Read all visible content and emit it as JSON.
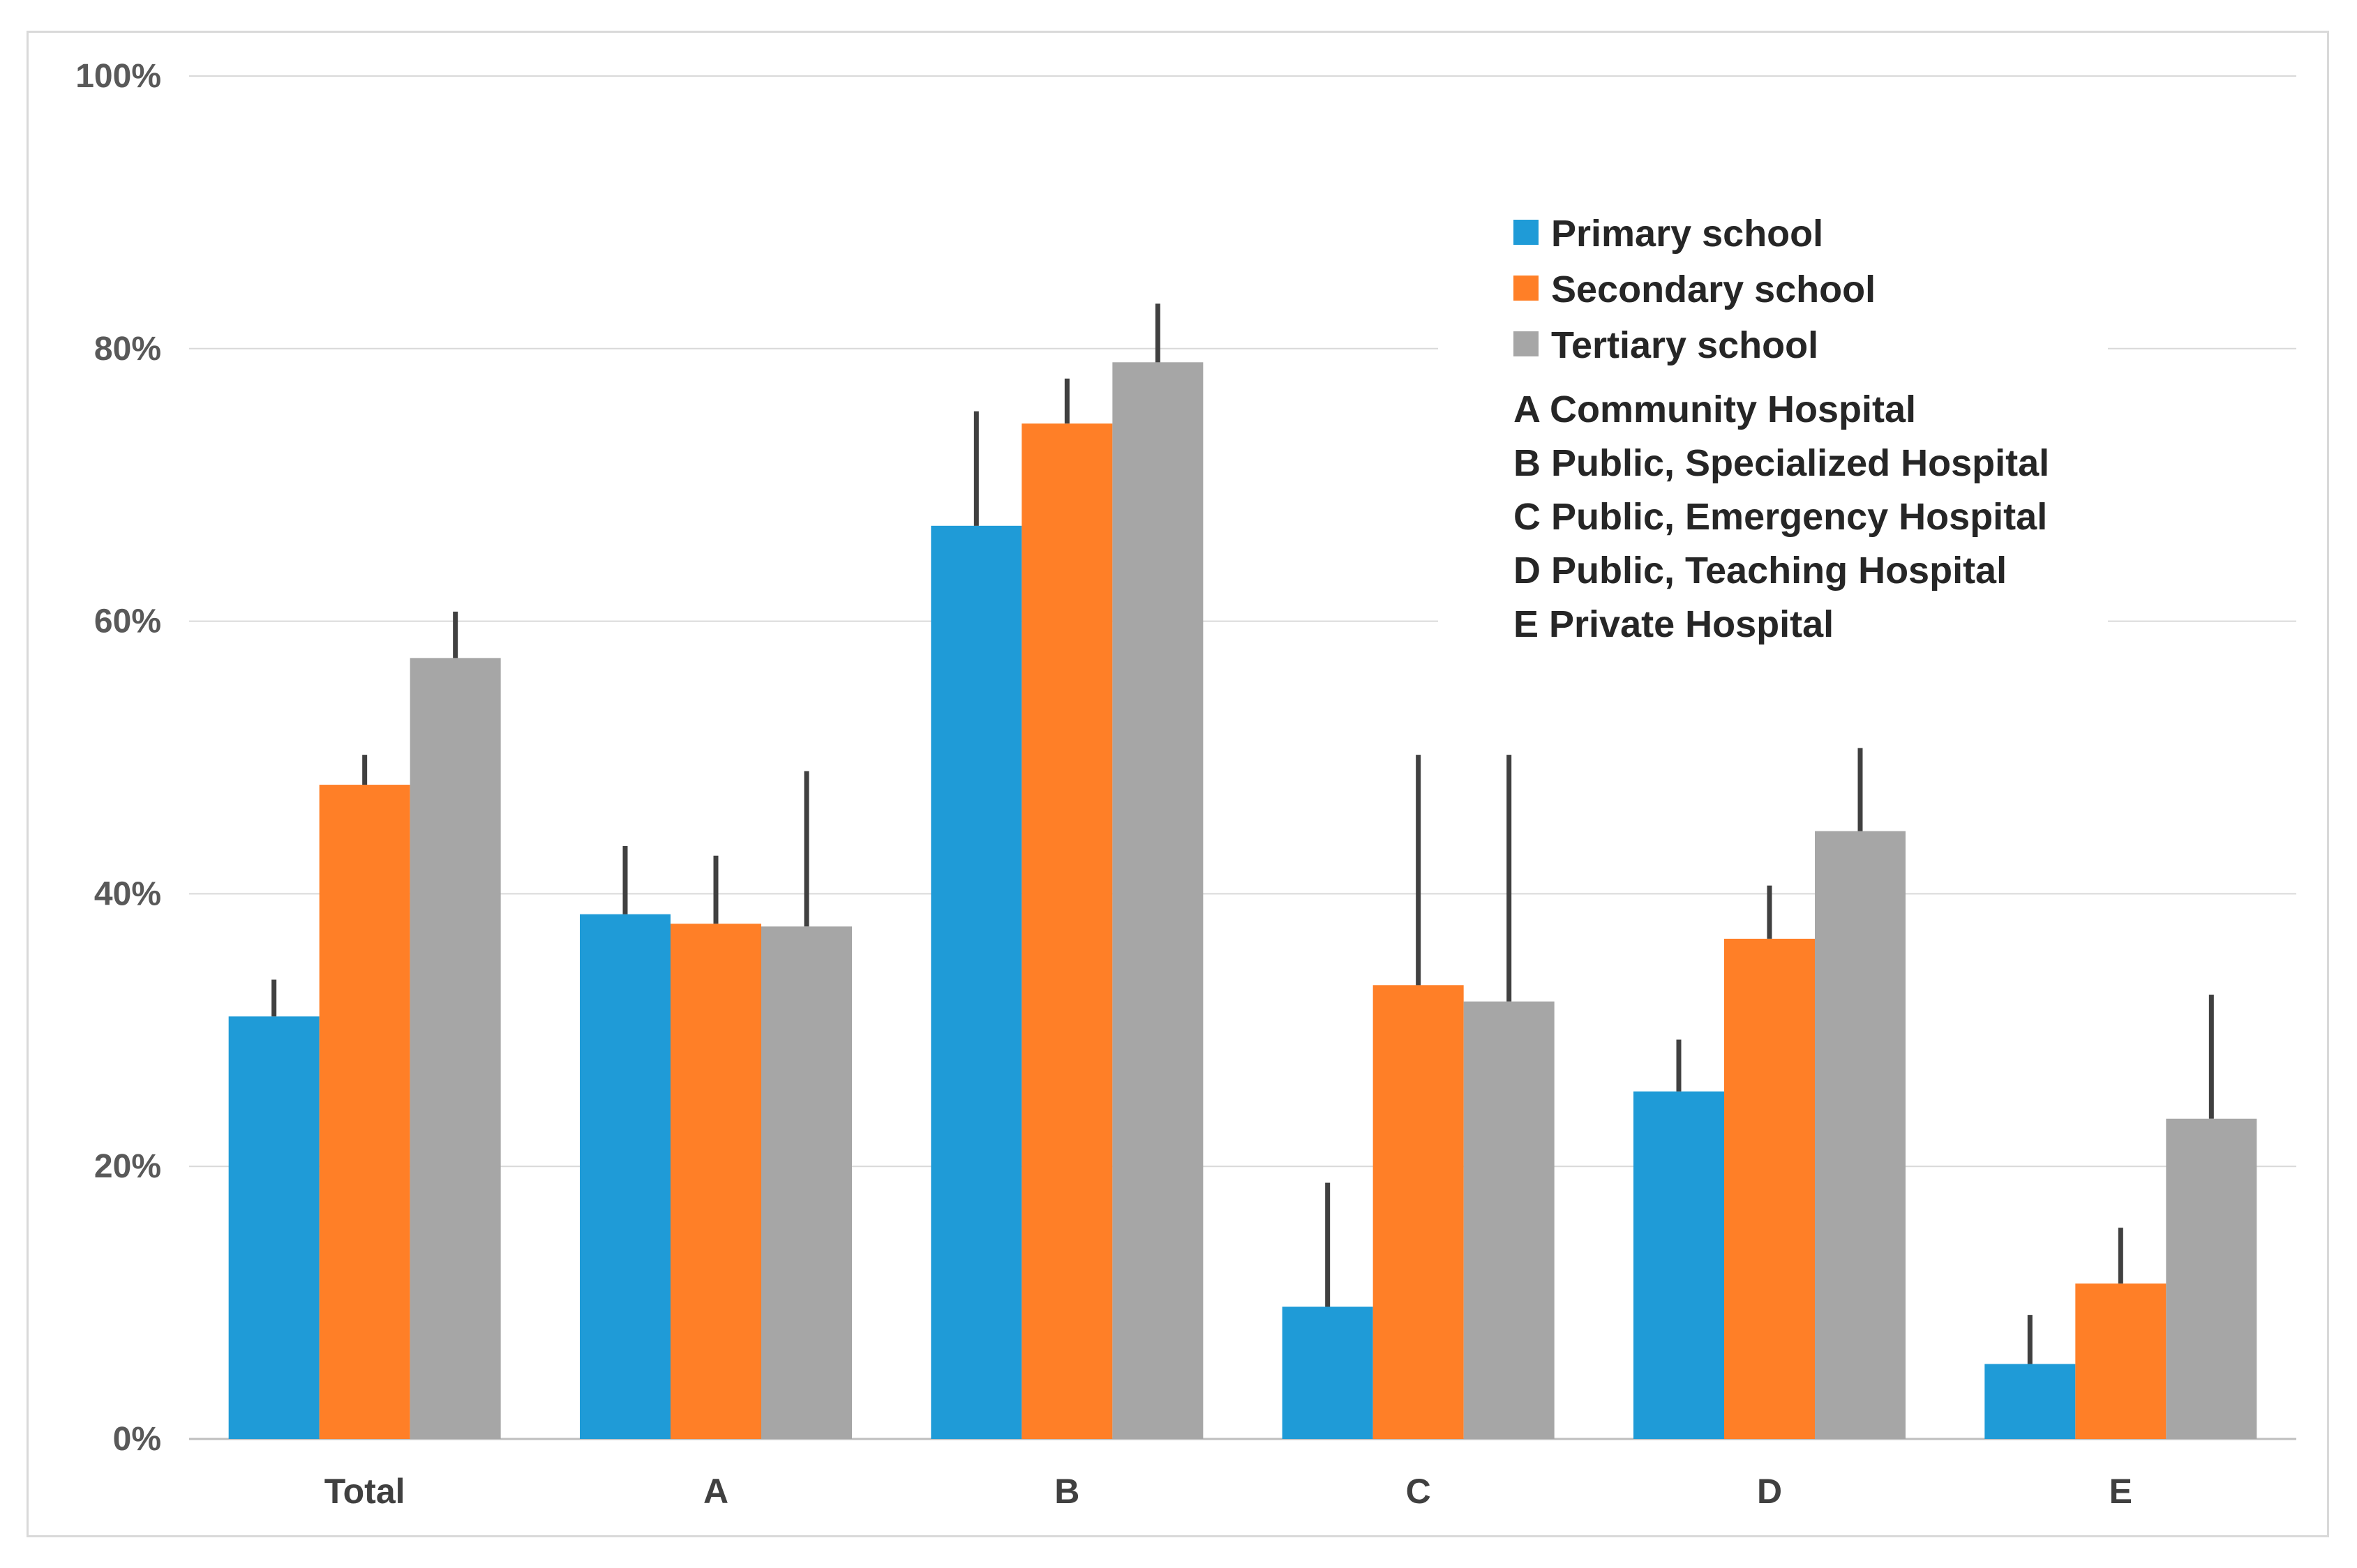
{
  "colors": {
    "primary": "#1F9BD7",
    "secondary": "#FF7F27",
    "tertiary": "#A6A6A6",
    "grid": "#D9D9D9",
    "error_bar": "#404040"
  },
  "chart_data": {
    "type": "bar",
    "title": "",
    "xlabel": "",
    "ylabel": "",
    "ylim": [
      0,
      100
    ],
    "y_ticks": [
      0,
      20,
      40,
      60,
      80,
      100
    ],
    "y_tick_labels": [
      "0%",
      "20%",
      "40%",
      "60%",
      "80%",
      "100%"
    ],
    "grid": true,
    "legend_position": "top-right",
    "categories": [
      "Total",
      "A",
      "B",
      "C",
      "D",
      "E"
    ],
    "series": [
      {
        "name": "Primary school",
        "color": "#1F9BD7",
        "values": [
          31,
          38.5,
          67,
          9.7,
          25.5,
          5.5
        ],
        "error_upper": [
          33.7,
          43.5,
          75.4,
          18.8,
          29.3,
          9.1
        ]
      },
      {
        "name": "Secondary school",
        "color": "#FF7F27",
        "values": [
          48,
          37.8,
          74.5,
          33.3,
          36.7,
          11.4
        ],
        "error_upper": [
          50.2,
          42.8,
          77.8,
          50.2,
          40.6,
          15.5
        ]
      },
      {
        "name": "Tertiary school",
        "color": "#A6A6A6",
        "values": [
          57.3,
          37.6,
          79,
          32.1,
          44.6,
          23.5
        ],
        "error_upper": [
          60.7,
          49,
          83.3,
          50.2,
          50.7,
          32.6
        ]
      }
    ],
    "category_notes": [
      "A Community Hospital",
      "B Public, Specialized Hospital",
      "C Public, Emergency Hospital",
      "D Public, Teaching Hospital",
      "E Private Hospital"
    ]
  }
}
